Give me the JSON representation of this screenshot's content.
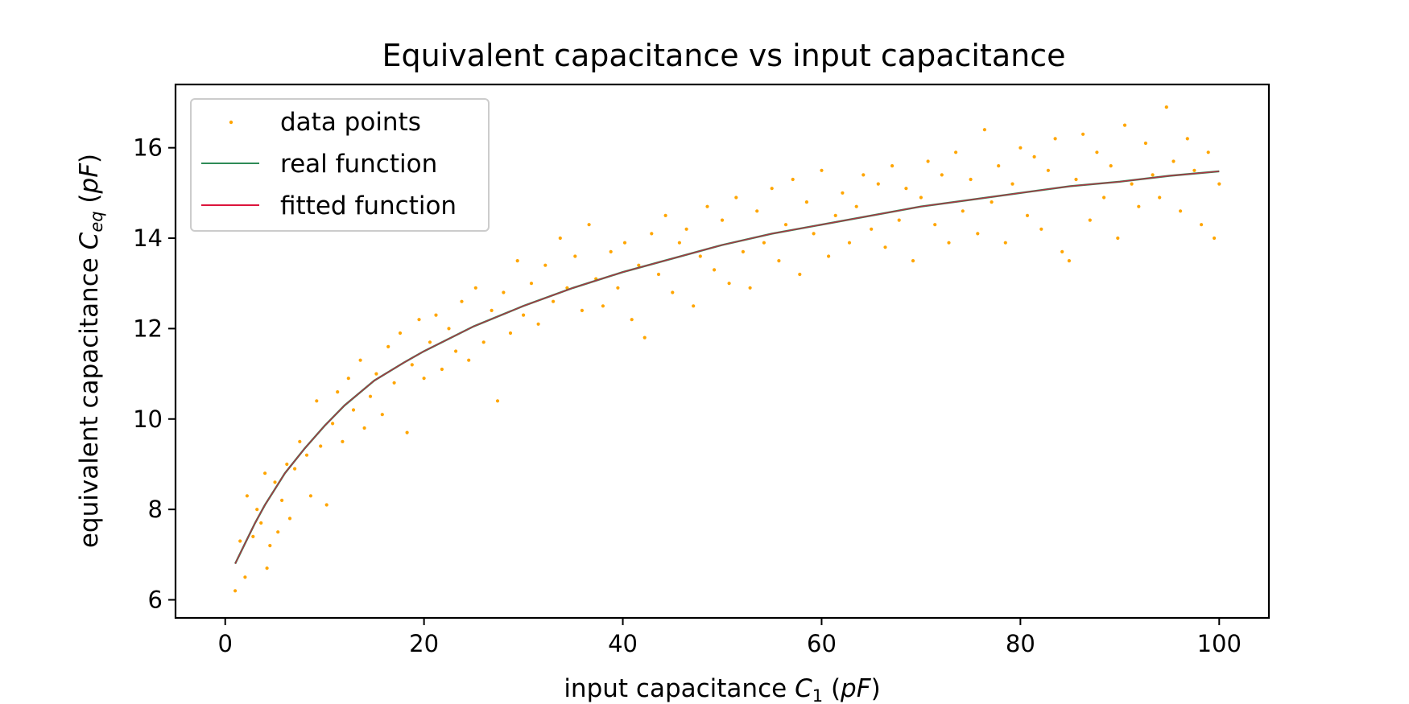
{
  "chart_data": {
    "type": "scatter",
    "title": "Equivalent capacitance vs input capacitance",
    "xlabel": "input capacitance C_1 (pF)",
    "xlabel_parts": {
      "prefix": "input capacitance ",
      "symbol": "C",
      "subscript": "1",
      "unit_open": " (",
      "unit": "pF",
      "unit_close": ")"
    },
    "ylabel": "equivalent capacitance C_eq (pF)",
    "ylabel_parts": {
      "prefix": "equivalent capacitance ",
      "symbol": "C",
      "subscript": "eq",
      "unit_open": " (",
      "unit": "pF",
      "unit_close": ")"
    },
    "xlim": [
      -5,
      105
    ],
    "ylim": [
      5.6,
      17.4
    ],
    "xticks": [
      0,
      20,
      40,
      60,
      80,
      100
    ],
    "yticks": [
      6,
      8,
      10,
      12,
      14,
      16
    ],
    "grid": false,
    "legend_placement": "upper-left",
    "legend": [
      "data points",
      "real function",
      "fitted function"
    ],
    "colors": {
      "data_points": "#ffa500",
      "real_function": "#2e8b57",
      "fitted_function": "#dc143c"
    },
    "curve": {
      "x": [
        1,
        2,
        3,
        4,
        5,
        6,
        8,
        10,
        12,
        15,
        18,
        20,
        25,
        30,
        35,
        40,
        45,
        50,
        55,
        60,
        65,
        70,
        75,
        80,
        85,
        90,
        95,
        100
      ],
      "y": [
        6.8,
        7.25,
        7.7,
        8.1,
        8.45,
        8.8,
        9.35,
        9.85,
        10.3,
        10.85,
        11.25,
        11.5,
        12.05,
        12.5,
        12.9,
        13.25,
        13.55,
        13.85,
        14.1,
        14.3,
        14.5,
        14.7,
        14.85,
        15.0,
        15.15,
        15.25,
        15.38,
        15.48
      ]
    },
    "series": [
      {
        "name": "data points",
        "points": [
          [
            1.0,
            6.2
          ],
          [
            1.5,
            7.3
          ],
          [
            2.0,
            6.5
          ],
          [
            2.2,
            8.3
          ],
          [
            2.8,
            7.4
          ],
          [
            3.2,
            8.0
          ],
          [
            3.6,
            7.7
          ],
          [
            4.0,
            8.8
          ],
          [
            4.2,
            6.7
          ],
          [
            4.5,
            7.2
          ],
          [
            5.0,
            8.6
          ],
          [
            5.3,
            7.5
          ],
          [
            5.7,
            8.2
          ],
          [
            6.2,
            9.0
          ],
          [
            6.5,
            7.8
          ],
          [
            7.0,
            8.9
          ],
          [
            7.5,
            9.5
          ],
          [
            8.2,
            9.2
          ],
          [
            8.6,
            8.3
          ],
          [
            9.2,
            10.4
          ],
          [
            9.6,
            9.4
          ],
          [
            10.2,
            8.1
          ],
          [
            10.8,
            9.9
          ],
          [
            11.3,
            10.6
          ],
          [
            11.8,
            9.5
          ],
          [
            12.4,
            10.9
          ],
          [
            12.9,
            10.2
          ],
          [
            13.6,
            11.3
          ],
          [
            14.0,
            9.8
          ],
          [
            14.6,
            10.5
          ],
          [
            15.2,
            11.0
          ],
          [
            15.8,
            10.1
          ],
          [
            16.4,
            11.6
          ],
          [
            17.0,
            10.8
          ],
          [
            17.6,
            11.9
          ],
          [
            18.3,
            9.7
          ],
          [
            18.8,
            11.2
          ],
          [
            19.5,
            12.2
          ],
          [
            20.0,
            10.9
          ],
          [
            20.6,
            11.7
          ],
          [
            21.2,
            12.3
          ],
          [
            21.8,
            11.1
          ],
          [
            22.5,
            12.0
          ],
          [
            23.2,
            11.5
          ],
          [
            23.8,
            12.6
          ],
          [
            24.5,
            11.3
          ],
          [
            25.2,
            12.9
          ],
          [
            26.0,
            11.7
          ],
          [
            26.8,
            12.4
          ],
          [
            27.4,
            10.4
          ],
          [
            28.0,
            12.8
          ],
          [
            28.7,
            11.9
          ],
          [
            29.4,
            13.5
          ],
          [
            30.0,
            12.3
          ],
          [
            30.8,
            13.0
          ],
          [
            31.5,
            12.1
          ],
          [
            32.2,
            13.4
          ],
          [
            33.0,
            12.6
          ],
          [
            33.7,
            14.0
          ],
          [
            34.4,
            12.9
          ],
          [
            35.2,
            13.6
          ],
          [
            35.9,
            12.4
          ],
          [
            36.6,
            14.3
          ],
          [
            37.3,
            13.1
          ],
          [
            38.0,
            12.5
          ],
          [
            38.8,
            13.7
          ],
          [
            39.5,
            12.9
          ],
          [
            40.2,
            13.9
          ],
          [
            40.9,
            12.2
          ],
          [
            41.6,
            13.4
          ],
          [
            42.2,
            11.8
          ],
          [
            42.9,
            14.1
          ],
          [
            43.6,
            13.2
          ],
          [
            44.3,
            14.5
          ],
          [
            45.0,
            12.8
          ],
          [
            45.7,
            13.9
          ],
          [
            46.4,
            14.2
          ],
          [
            47.1,
            12.5
          ],
          [
            47.8,
            13.6
          ],
          [
            48.5,
            14.7
          ],
          [
            49.2,
            13.3
          ],
          [
            50.0,
            14.4
          ],
          [
            50.7,
            13.0
          ],
          [
            51.4,
            14.9
          ],
          [
            52.1,
            13.7
          ],
          [
            52.8,
            12.9
          ],
          [
            53.5,
            14.6
          ],
          [
            54.2,
            13.9
          ],
          [
            55.0,
            15.1
          ],
          [
            55.7,
            13.5
          ],
          [
            56.4,
            14.3
          ],
          [
            57.1,
            15.3
          ],
          [
            57.8,
            13.2
          ],
          [
            58.5,
            14.8
          ],
          [
            59.2,
            14.1
          ],
          [
            60.0,
            15.5
          ],
          [
            60.7,
            13.6
          ],
          [
            61.4,
            14.5
          ],
          [
            62.1,
            15.0
          ],
          [
            62.8,
            13.9
          ],
          [
            63.5,
            14.7
          ],
          [
            64.2,
            15.4
          ],
          [
            65.0,
            14.2
          ],
          [
            65.7,
            15.2
          ],
          [
            66.4,
            13.8
          ],
          [
            67.1,
            15.6
          ],
          [
            67.8,
            14.4
          ],
          [
            68.5,
            15.1
          ],
          [
            69.2,
            13.5
          ],
          [
            70.0,
            14.9
          ],
          [
            70.7,
            15.7
          ],
          [
            71.4,
            14.3
          ],
          [
            72.1,
            15.4
          ],
          [
            72.8,
            13.9
          ],
          [
            73.5,
            15.9
          ],
          [
            74.2,
            14.6
          ],
          [
            75.0,
            15.3
          ],
          [
            75.7,
            14.1
          ],
          [
            76.4,
            16.4
          ],
          [
            77.1,
            14.8
          ],
          [
            77.8,
            15.6
          ],
          [
            78.5,
            13.9
          ],
          [
            79.2,
            15.2
          ],
          [
            80.0,
            16.0
          ],
          [
            80.7,
            14.5
          ],
          [
            81.4,
            15.8
          ],
          [
            82.1,
            14.2
          ],
          [
            82.8,
            15.5
          ],
          [
            83.5,
            16.2
          ],
          [
            84.2,
            13.7
          ],
          [
            84.9,
            13.5
          ],
          [
            85.6,
            15.3
          ],
          [
            86.3,
            16.3
          ],
          [
            87.0,
            14.4
          ],
          [
            87.7,
            15.9
          ],
          [
            88.4,
            14.9
          ],
          [
            89.1,
            15.6
          ],
          [
            89.8,
            14.0
          ],
          [
            90.5,
            16.5
          ],
          [
            91.2,
            15.2
          ],
          [
            91.9,
            14.7
          ],
          [
            92.6,
            16.1
          ],
          [
            93.3,
            15.4
          ],
          [
            94.0,
            14.9
          ],
          [
            94.7,
            16.9
          ],
          [
            95.4,
            15.7
          ],
          [
            96.1,
            14.6
          ],
          [
            96.8,
            16.2
          ],
          [
            97.5,
            15.5
          ],
          [
            98.2,
            14.3
          ],
          [
            98.9,
            15.9
          ],
          [
            99.5,
            14.0
          ],
          [
            100.0,
            15.2
          ]
        ]
      },
      {
        "name": "real function"
      },
      {
        "name": "fitted function"
      }
    ]
  }
}
